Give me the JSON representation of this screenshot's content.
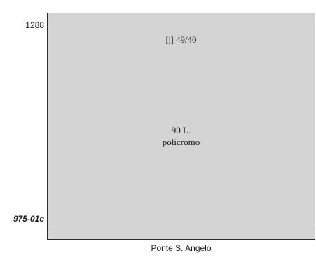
{
  "left_labels": {
    "top": "1288",
    "bottom": "975-01c"
  },
  "panel": {
    "top_caption": "[|] 49/40",
    "middle_caption_line1": "90 L.",
    "middle_caption_line2": "policromo",
    "fill_color": "#d4d4d4",
    "border_color": "#2a2a2a"
  },
  "bottom_label": "Ponte S. Angelo"
}
